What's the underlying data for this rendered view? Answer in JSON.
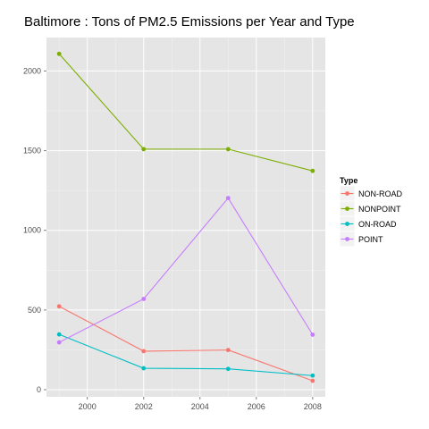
{
  "chart_data": {
    "type": "line",
    "title": "Baltimore : Tons of PM2.5 Emissions per Year and Type",
    "xlabel": "",
    "ylabel": "",
    "x": [
      1999,
      2002,
      2005,
      2008
    ],
    "xlim": [
      1998.55,
      2008.45
    ],
    "ylim": [
      -45,
      2210
    ],
    "x_ticks": [
      2000,
      2002,
      2004,
      2006,
      2008
    ],
    "y_ticks": [
      0,
      500,
      1000,
      1500,
      2000
    ],
    "grid": true,
    "legend": {
      "title": "Type",
      "position": "right"
    },
    "series": [
      {
        "name": "NON-ROAD",
        "color": "#F8766D",
        "values": [
          522.9,
          241.6,
          248.9,
          55.8
        ]
      },
      {
        "name": "NONPOINT",
        "color": "#7CAE00",
        "values": [
          2107.6,
          1509.5,
          1509.5,
          1373.2
        ]
      },
      {
        "name": "ON-ROAD",
        "color": "#00BFC4",
        "values": [
          346.8,
          134.3,
          130.4,
          88.3
        ]
      },
      {
        "name": "POINT",
        "color": "#C77CFF",
        "values": [
          296.8,
          569.3,
          1202.5,
          344.98
        ]
      }
    ]
  },
  "style": {
    "panel_background": "#E5E5E5",
    "grid_major": "#FFFFFF",
    "grid_minor": "#F2F2F2"
  }
}
